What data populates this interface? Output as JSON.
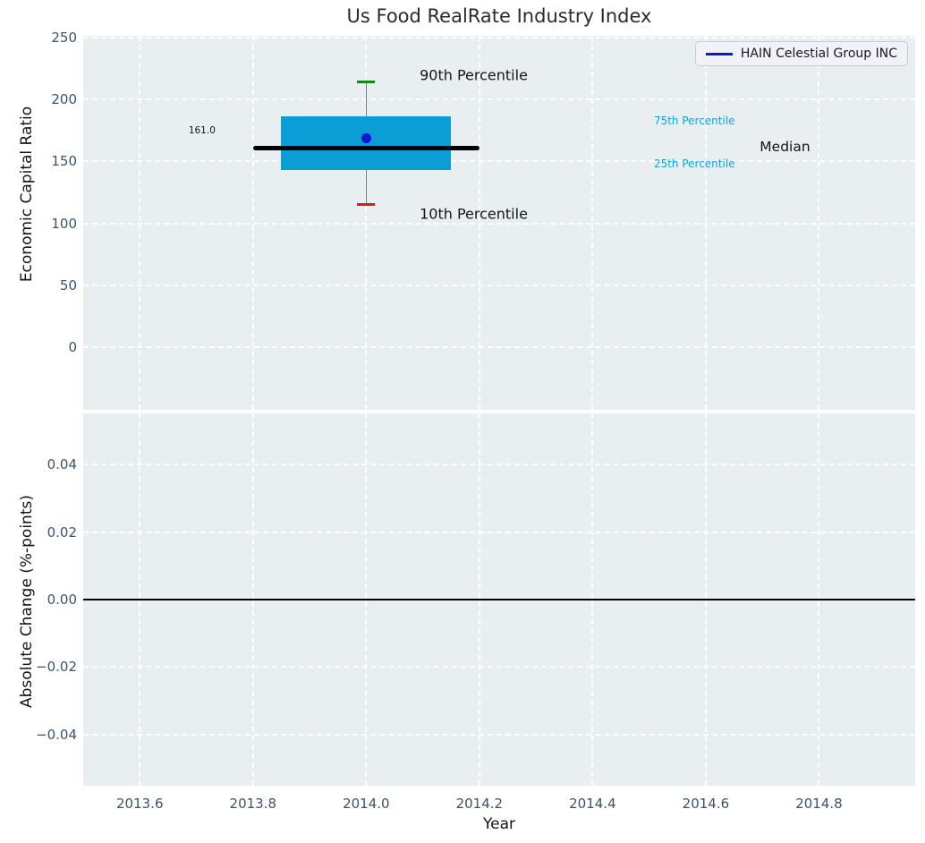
{
  "figure": {
    "title": "Us Food RealRate Industry Index"
  },
  "legend": {
    "label": "HAIN Celestial Group INC"
  },
  "colors": {
    "axes_bg": "#e9eef0",
    "grid": "#ffffff",
    "box_fill": "#0a9ed5",
    "median_line": "#000000",
    "whisker": "#7a7a7a",
    "cap_high": "#0f8c15",
    "cap_low": "#e81416",
    "company_marker": "#1414dc",
    "legend_line": "#1414dc",
    "tick_label": "#3e5266",
    "percentile_label": "#1b9fd6",
    "text": "#141414"
  },
  "chart_data": [
    {
      "type": "boxplot",
      "title": "Us Food RealRate Industry Index",
      "ylabel": "Economic Capital Ratio",
      "xlim": [
        2013.5,
        2014.97
      ],
      "ylim": [
        -50.5,
        251.5
      ],
      "yticks": [
        "250",
        "200",
        "150",
        "100",
        "50",
        "0"
      ],
      "ytick_values": [
        250,
        200,
        150,
        100,
        50,
        0
      ],
      "grid": true,
      "legend_entries": [
        "HAIN Celestial Group INC"
      ],
      "legend_position": "upper right",
      "box": {
        "x_center": 2014.0,
        "box_left": 2013.85,
        "box_right": 2014.15,
        "median_left": 2013.8,
        "median_right": 2014.2,
        "p10": 115,
        "p25": 143,
        "median": 161,
        "p75": 186.5,
        "p90": 214,
        "company_value": 169
      },
      "annotations": [
        {
          "text": "90th Percentile",
          "x": 2014.19,
          "y": 220,
          "size": 16,
          "color": "#141414"
        },
        {
          "text": "10th Percentile",
          "x": 2014.19,
          "y": 108,
          "size": 16,
          "color": "#141414"
        },
        {
          "text": "161.0",
          "x": 2013.71,
          "y": 175,
          "size": 10.5,
          "color": "#141414"
        },
        {
          "text": "75th Percentile",
          "x": 2014.58,
          "y": 183,
          "size": 12,
          "color": "#1b9fd6"
        },
        {
          "text": "25th Percentile",
          "x": 2014.58,
          "y": 148.5,
          "size": 12,
          "color": "#1b9fd6"
        },
        {
          "text": "Median",
          "x": 2014.74,
          "y": 162,
          "size": 15.5,
          "color": "#141414"
        }
      ]
    },
    {
      "type": "line",
      "ylabel": "Absolute Change (%-points)",
      "xlabel": "Year",
      "xlim": [
        2013.5,
        2014.97
      ],
      "ylim": [
        -0.0552,
        0.0552
      ],
      "yticks": [
        "0.04",
        "0.02",
        "0.00",
        "−0.02",
        "−0.04"
      ],
      "ytick_values": [
        0.04,
        0.02,
        0.0,
        -0.02,
        -0.04
      ],
      "xticks": [
        "2013.6",
        "2013.8",
        "2014.0",
        "2014.2",
        "2014.4",
        "2014.6",
        "2014.8"
      ],
      "xtick_values": [
        2013.6,
        2013.8,
        2014.0,
        2014.2,
        2014.4,
        2014.6,
        2014.8
      ],
      "zero_line": 0.0,
      "grid": true,
      "series": []
    }
  ]
}
